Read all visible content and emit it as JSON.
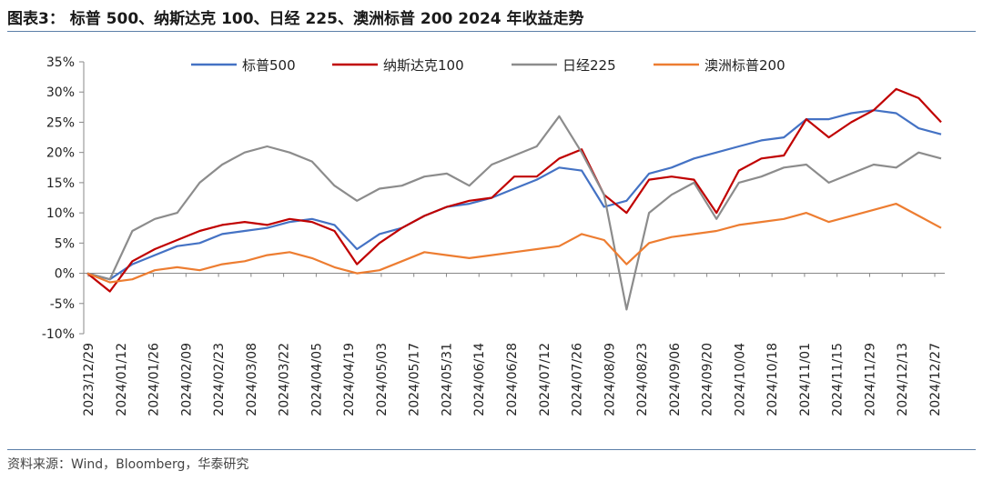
{
  "title": "图表3：  标普 500、纳斯达克 100、日经 225、澳洲标普 200 2024 年收益走势",
  "source": "资料来源：Wind，Bloomberg，华泰研究",
  "chart_data": {
    "type": "line",
    "title": "图表3：  标普 500、纳斯达克 100、日经 225、澳洲标普 200 2024 年收益走势",
    "xlabel": "",
    "ylabel": "",
    "ylim": [
      -10,
      35
    ],
    "y_tick_labels": [
      "-10%",
      "-5%",
      "0%",
      "5%",
      "10%",
      "15%",
      "20%",
      "25%",
      "30%",
      "35%"
    ],
    "x_tick_labels": [
      "2023/12/29",
      "2024/01/12",
      "2024/01/26",
      "2024/02/09",
      "2024/02/23",
      "2024/03/08",
      "2024/03/22",
      "2024/04/05",
      "2024/04/19",
      "2024/05/03",
      "2024/05/17",
      "2024/05/31",
      "2024/06/14",
      "2024/06/28",
      "2024/07/12",
      "2024/07/26",
      "2024/08/09",
      "2024/08/23",
      "2024/09/06",
      "2024/09/20",
      "2024/10/04",
      "2024/10/18",
      "2024/11/01",
      "2024/11/15",
      "2024/11/29",
      "2024/12/13",
      "2024/12/27"
    ],
    "grid": false,
    "legend_position": "top",
    "series": [
      {
        "name": "标普500",
        "color": "#4472c4",
        "values": [
          0,
          -1,
          1.5,
          3,
          4.5,
          5,
          6.5,
          7,
          7.5,
          8.5,
          9,
          8,
          4,
          6.5,
          7.5,
          9.5,
          11,
          11.5,
          12.5,
          14,
          15.5,
          17.5,
          17,
          11,
          12,
          16.5,
          17.5,
          19,
          20,
          21,
          22,
          22.5,
          25.5,
          25.5,
          26.5,
          27,
          26.5,
          24,
          23
        ]
      },
      {
        "name": "纳斯达克100",
        "color": "#c00000",
        "values": [
          0,
          -3,
          2,
          4,
          5.5,
          7,
          8,
          8.5,
          8,
          9,
          8.5,
          7,
          1.5,
          5,
          7.5,
          9.5,
          11,
          12,
          12.5,
          16,
          16,
          19,
          20.5,
          13,
          10,
          15.5,
          16,
          15.5,
          10,
          17,
          19,
          19.5,
          25.5,
          22.5,
          25,
          27,
          30.5,
          29,
          25
        ]
      },
      {
        "name": "日经225",
        "color": "#8c8c8c",
        "values": [
          0,
          -1,
          7,
          9,
          10,
          15,
          18,
          20,
          21,
          20,
          18.5,
          14.5,
          12,
          14,
          14.5,
          16,
          16.5,
          14.5,
          18,
          19.5,
          21,
          26,
          20,
          13,
          -6,
          10,
          13,
          15,
          9,
          15,
          16,
          17.5,
          18,
          15,
          16.5,
          18,
          17.5,
          20,
          19
        ]
      },
      {
        "name": "澳洲标普200",
        "color": "#ed7d31",
        "values": [
          0,
          -1.5,
          -1,
          0.5,
          1,
          0.5,
          1.5,
          2,
          3,
          3.5,
          2.5,
          1,
          0,
          0.5,
          2,
          3.5,
          3,
          2.5,
          3,
          3.5,
          4,
          4.5,
          6.5,
          5.5,
          1.5,
          5,
          6,
          6.5,
          7,
          8,
          8.5,
          9,
          10,
          8.5,
          9.5,
          10.5,
          11.5,
          9.5,
          7.5
        ]
      }
    ]
  }
}
